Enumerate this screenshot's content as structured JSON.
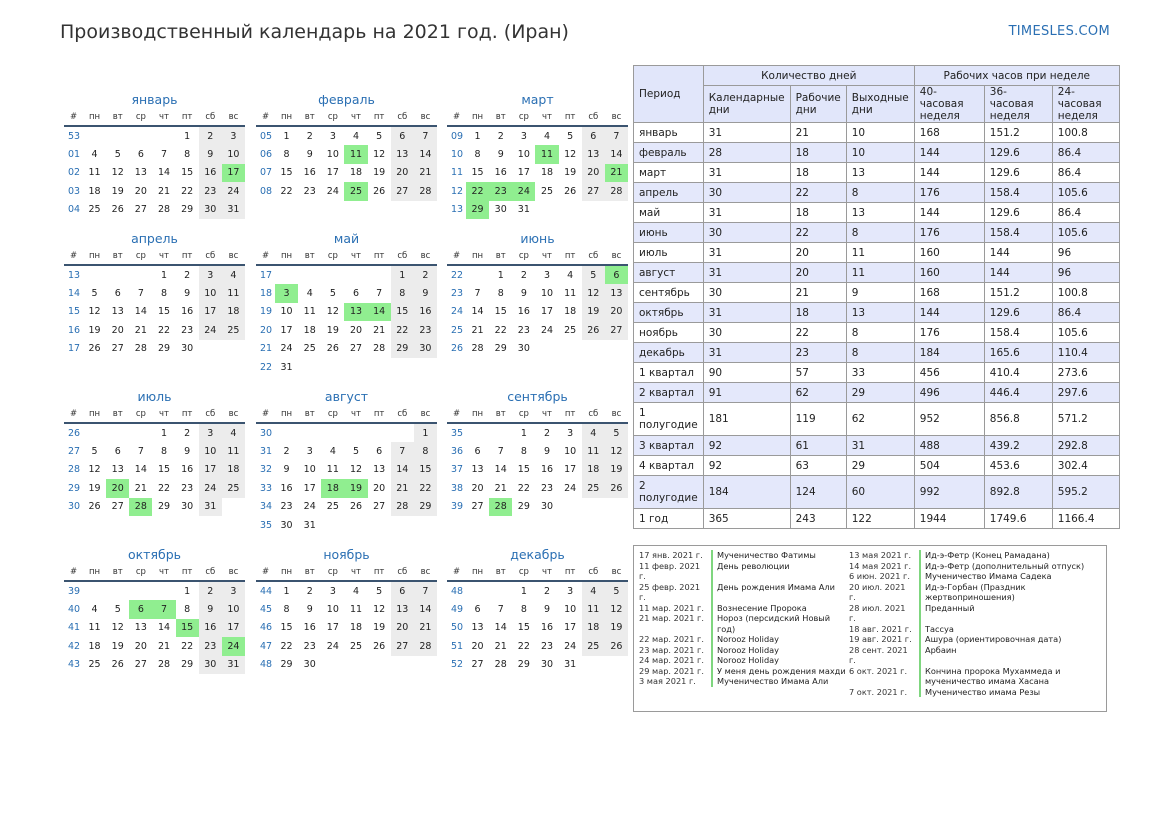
{
  "header": {
    "title": "Производственный календарь на 2021 год. (Иран)",
    "site": "TIMESLES.COM"
  },
  "weekday_headers": [
    "#",
    "пн",
    "вт",
    "ср",
    "чт",
    "пт",
    "сб",
    "вс"
  ],
  "months": [
    {
      "name": "январь",
      "weeks": [
        [
          "53",
          "",
          "",
          "",
          "",
          "1",
          "2",
          "3"
        ],
        [
          "01",
          "4",
          "5",
          "6",
          "7",
          "8",
          "9",
          "10"
        ],
        [
          "02",
          "11",
          "12",
          "13",
          "14",
          "15",
          "16",
          "17"
        ],
        [
          "03",
          "18",
          "19",
          "20",
          "21",
          "22",
          "23",
          "24"
        ],
        [
          "04",
          "25",
          "26",
          "27",
          "28",
          "29",
          "30",
          "31"
        ]
      ],
      "holidays": [
        "17"
      ]
    },
    {
      "name": "февраль",
      "weeks": [
        [
          "05",
          "1",
          "2",
          "3",
          "4",
          "5",
          "6",
          "7"
        ],
        [
          "06",
          "8",
          "9",
          "10",
          "11",
          "12",
          "13",
          "14"
        ],
        [
          "07",
          "15",
          "16",
          "17",
          "18",
          "19",
          "20",
          "21"
        ],
        [
          "08",
          "22",
          "23",
          "24",
          "25",
          "26",
          "27",
          "28"
        ]
      ],
      "holidays": [
        "11",
        "25"
      ]
    },
    {
      "name": "март",
      "weeks": [
        [
          "09",
          "1",
          "2",
          "3",
          "4",
          "5",
          "6",
          "7"
        ],
        [
          "10",
          "8",
          "9",
          "10",
          "11",
          "12",
          "13",
          "14"
        ],
        [
          "11",
          "15",
          "16",
          "17",
          "18",
          "19",
          "20",
          "21"
        ],
        [
          "12",
          "22",
          "23",
          "24",
          "25",
          "26",
          "27",
          "28"
        ],
        [
          "13",
          "29",
          "30",
          "31",
          "",
          "",
          "",
          ""
        ]
      ],
      "holidays": [
        "11",
        "21",
        "22",
        "23",
        "24",
        "29"
      ]
    },
    {
      "name": "апрель",
      "weeks": [
        [
          "13",
          "",
          "",
          "",
          "1",
          "2",
          "3",
          "4"
        ],
        [
          "14",
          "5",
          "6",
          "7",
          "8",
          "9",
          "10",
          "11"
        ],
        [
          "15",
          "12",
          "13",
          "14",
          "15",
          "16",
          "17",
          "18"
        ],
        [
          "16",
          "19",
          "20",
          "21",
          "22",
          "23",
          "24",
          "25"
        ],
        [
          "17",
          "26",
          "27",
          "28",
          "29",
          "30",
          "",
          ""
        ]
      ],
      "holidays": []
    },
    {
      "name": "май",
      "weeks": [
        [
          "17",
          "",
          "",
          "",
          "",
          "",
          "1",
          "2"
        ],
        [
          "18",
          "3",
          "4",
          "5",
          "6",
          "7",
          "8",
          "9"
        ],
        [
          "19",
          "10",
          "11",
          "12",
          "13",
          "14",
          "15",
          "16"
        ],
        [
          "20",
          "17",
          "18",
          "19",
          "20",
          "21",
          "22",
          "23"
        ],
        [
          "21",
          "24",
          "25",
          "26",
          "27",
          "28",
          "29",
          "30"
        ],
        [
          "22",
          "31",
          "",
          "",
          "",
          "",
          "",
          ""
        ]
      ],
      "holidays": [
        "3",
        "13",
        "14"
      ]
    },
    {
      "name": "июнь",
      "weeks": [
        [
          "22",
          "",
          "1",
          "2",
          "3",
          "4",
          "5",
          "6"
        ],
        [
          "23",
          "7",
          "8",
          "9",
          "10",
          "11",
          "12",
          "13"
        ],
        [
          "24",
          "14",
          "15",
          "16",
          "17",
          "18",
          "19",
          "20"
        ],
        [
          "25",
          "21",
          "22",
          "23",
          "24",
          "25",
          "26",
          "27"
        ],
        [
          "26",
          "28",
          "29",
          "30",
          "",
          "",
          "",
          ""
        ]
      ],
      "holidays": [
        "6"
      ]
    },
    {
      "name": "июль",
      "weeks": [
        [
          "26",
          "",
          "",
          "",
          "1",
          "2",
          "3",
          "4"
        ],
        [
          "27",
          "5",
          "6",
          "7",
          "8",
          "9",
          "10",
          "11"
        ],
        [
          "28",
          "12",
          "13",
          "14",
          "15",
          "16",
          "17",
          "18"
        ],
        [
          "29",
          "19",
          "20",
          "21",
          "22",
          "23",
          "24",
          "25"
        ],
        [
          "30",
          "26",
          "27",
          "28",
          "29",
          "30",
          "31",
          ""
        ]
      ],
      "holidays": [
        "20",
        "28"
      ]
    },
    {
      "name": "август",
      "weeks": [
        [
          "30",
          "",
          "",
          "",
          "",
          "",
          "",
          "1"
        ],
        [
          "31",
          "2",
          "3",
          "4",
          "5",
          "6",
          "7",
          "8"
        ],
        [
          "32",
          "9",
          "10",
          "11",
          "12",
          "13",
          "14",
          "15"
        ],
        [
          "33",
          "16",
          "17",
          "18",
          "19",
          "20",
          "21",
          "22"
        ],
        [
          "34",
          "23",
          "24",
          "25",
          "26",
          "27",
          "28",
          "29"
        ],
        [
          "35",
          "30",
          "31",
          "",
          "",
          "",
          "",
          ""
        ]
      ],
      "holidays": [
        "18",
        "19"
      ]
    },
    {
      "name": "сентябрь",
      "weeks": [
        [
          "35",
          "",
          "",
          "1",
          "2",
          "3",
          "4",
          "5"
        ],
        [
          "36",
          "6",
          "7",
          "8",
          "9",
          "10",
          "11",
          "12"
        ],
        [
          "37",
          "13",
          "14",
          "15",
          "16",
          "17",
          "18",
          "19"
        ],
        [
          "38",
          "20",
          "21",
          "22",
          "23",
          "24",
          "25",
          "26"
        ],
        [
          "39",
          "27",
          "28",
          "29",
          "30",
          "",
          "",
          ""
        ]
      ],
      "holidays": [
        "28"
      ]
    },
    {
      "name": "октябрь",
      "weeks": [
        [
          "39",
          "",
          "",
          "",
          "",
          "1",
          "2",
          "3"
        ],
        [
          "40",
          "4",
          "5",
          "6",
          "7",
          "8",
          "9",
          "10"
        ],
        [
          "41",
          "11",
          "12",
          "13",
          "14",
          "15",
          "16",
          "17"
        ],
        [
          "42",
          "18",
          "19",
          "20",
          "21",
          "22",
          "23",
          "24"
        ],
        [
          "43",
          "25",
          "26",
          "27",
          "28",
          "29",
          "30",
          "31"
        ]
      ],
      "holidays": [
        "6",
        "7",
        "15",
        "24"
      ]
    },
    {
      "name": "ноябрь",
      "weeks": [
        [
          "44",
          "1",
          "2",
          "3",
          "4",
          "5",
          "6",
          "7"
        ],
        [
          "45",
          "8",
          "9",
          "10",
          "11",
          "12",
          "13",
          "14"
        ],
        [
          "46",
          "15",
          "16",
          "17",
          "18",
          "19",
          "20",
          "21"
        ],
        [
          "47",
          "22",
          "23",
          "24",
          "25",
          "26",
          "27",
          "28"
        ],
        [
          "48",
          "29",
          "30",
          "",
          "",
          "",
          "",
          ""
        ]
      ],
      "holidays": []
    },
    {
      "name": "декабрь",
      "weeks": [
        [
          "48",
          "",
          "",
          "1",
          "2",
          "3",
          "4",
          "5"
        ],
        [
          "49",
          "6",
          "7",
          "8",
          "9",
          "10",
          "11",
          "12"
        ],
        [
          "50",
          "13",
          "14",
          "15",
          "16",
          "17",
          "18",
          "19"
        ],
        [
          "51",
          "20",
          "21",
          "22",
          "23",
          "24",
          "25",
          "26"
        ],
        [
          "52",
          "27",
          "28",
          "29",
          "30",
          "31",
          "",
          ""
        ]
      ],
      "holidays": []
    }
  ],
  "stats": {
    "period_label": "Период",
    "group_days": "Количество дней",
    "group_hours": "Рабочих часов при неделе",
    "col_heads": [
      "Календарные дни",
      "Рабочие дни",
      "Выходные дни",
      "40-часовая неделя",
      "36-часовая неделя",
      "24-часовая неделя"
    ],
    "rows": [
      [
        "январь",
        "31",
        "21",
        "10",
        "168",
        "151.2",
        "100.8"
      ],
      [
        "февраль",
        "28",
        "18",
        "10",
        "144",
        "129.6",
        "86.4"
      ],
      [
        "март",
        "31",
        "18",
        "13",
        "144",
        "129.6",
        "86.4"
      ],
      [
        "апрель",
        "30",
        "22",
        "8",
        "176",
        "158.4",
        "105.6"
      ],
      [
        "май",
        "31",
        "18",
        "13",
        "144",
        "129.6",
        "86.4"
      ],
      [
        "июнь",
        "30",
        "22",
        "8",
        "176",
        "158.4",
        "105.6"
      ],
      [
        "июль",
        "31",
        "20",
        "11",
        "160",
        "144",
        "96"
      ],
      [
        "август",
        "31",
        "20",
        "11",
        "160",
        "144",
        "96"
      ],
      [
        "сентябрь",
        "30",
        "21",
        "9",
        "168",
        "151.2",
        "100.8"
      ],
      [
        "октябрь",
        "31",
        "18",
        "13",
        "144",
        "129.6",
        "86.4"
      ],
      [
        "ноябрь",
        "30",
        "22",
        "8",
        "176",
        "158.4",
        "105.6"
      ],
      [
        "декабрь",
        "31",
        "23",
        "8",
        "184",
        "165.6",
        "110.4"
      ],
      [
        "1 квартал",
        "90",
        "57",
        "33",
        "456",
        "410.4",
        "273.6"
      ],
      [
        "2 квартал",
        "91",
        "62",
        "29",
        "496",
        "446.4",
        "297.6"
      ],
      [
        "1 полугодие",
        "181",
        "119",
        "62",
        "952",
        "856.8",
        "571.2"
      ],
      [
        "3 квартал",
        "92",
        "61",
        "31",
        "488",
        "439.2",
        "292.8"
      ],
      [
        "4 квартал",
        "92",
        "63",
        "29",
        "504",
        "453.6",
        "302.4"
      ],
      [
        "2 полугодие",
        "184",
        "124",
        "60",
        "992",
        "892.8",
        "595.2"
      ],
      [
        "1 год",
        "365",
        "243",
        "122",
        "1944",
        "1749.6",
        "1166.4"
      ]
    ]
  },
  "holidays_list": {
    "left": [
      [
        "17 янв. 2021 г.",
        "Мученичество Фатимы"
      ],
      [
        "11 февр. 2021 г.",
        "День революции"
      ],
      [
        "25 февр. 2021 г.",
        "День рождения Имама Али"
      ],
      [
        "11 мар. 2021 г.",
        "Вознесение Пророка"
      ],
      [
        "21 мар. 2021 г.",
        "Нороз (персидский Новый год)"
      ],
      [
        "22 мар. 2021 г.",
        "Norooz Holiday"
      ],
      [
        "23 мар. 2021 г.",
        "Norooz Holiday"
      ],
      [
        "24 мар. 2021 г.",
        "Norooz Holiday"
      ],
      [
        "29 мар. 2021 г.",
        "У меня день рождения махди"
      ],
      [
        "3 мая 2021 г.",
        "Мученичество Имама Али"
      ]
    ],
    "right": [
      [
        "13 мая 2021 г.",
        "Ид-э-Фетр (Конец Рамадана)"
      ],
      [
        "14 мая 2021 г.",
        "Ид-э-Фетр (дополнительный отпуск)"
      ],
      [
        "6 июн. 2021 г.",
        "Мученичество Имама Садека"
      ],
      [
        "20 июл. 2021 г.",
        "Ид-э-Горбан (Праздник жертвоприношения)"
      ],
      [
        "28 июл. 2021 г.",
        "Преданный"
      ],
      [
        "18 авг. 2021 г.",
        "Тассуа"
      ],
      [
        "19 авг. 2021 г.",
        "Ашура (ориентировочная дата)"
      ],
      [
        "28 сент. 2021 г.",
        "Арбаин"
      ],
      [
        "6 окт. 2021 г.",
        "Кончина пророка Мухаммеда и мученичество имама Хасана"
      ],
      [
        "7 окт. 2021 г.",
        "Мученичество имама Резы"
      ]
    ]
  },
  "colors": {
    "accent": "#2a6fb3",
    "holiday": "#90ee90",
    "weekend": "#ececec",
    "header_bg": "#e1e6fa"
  }
}
